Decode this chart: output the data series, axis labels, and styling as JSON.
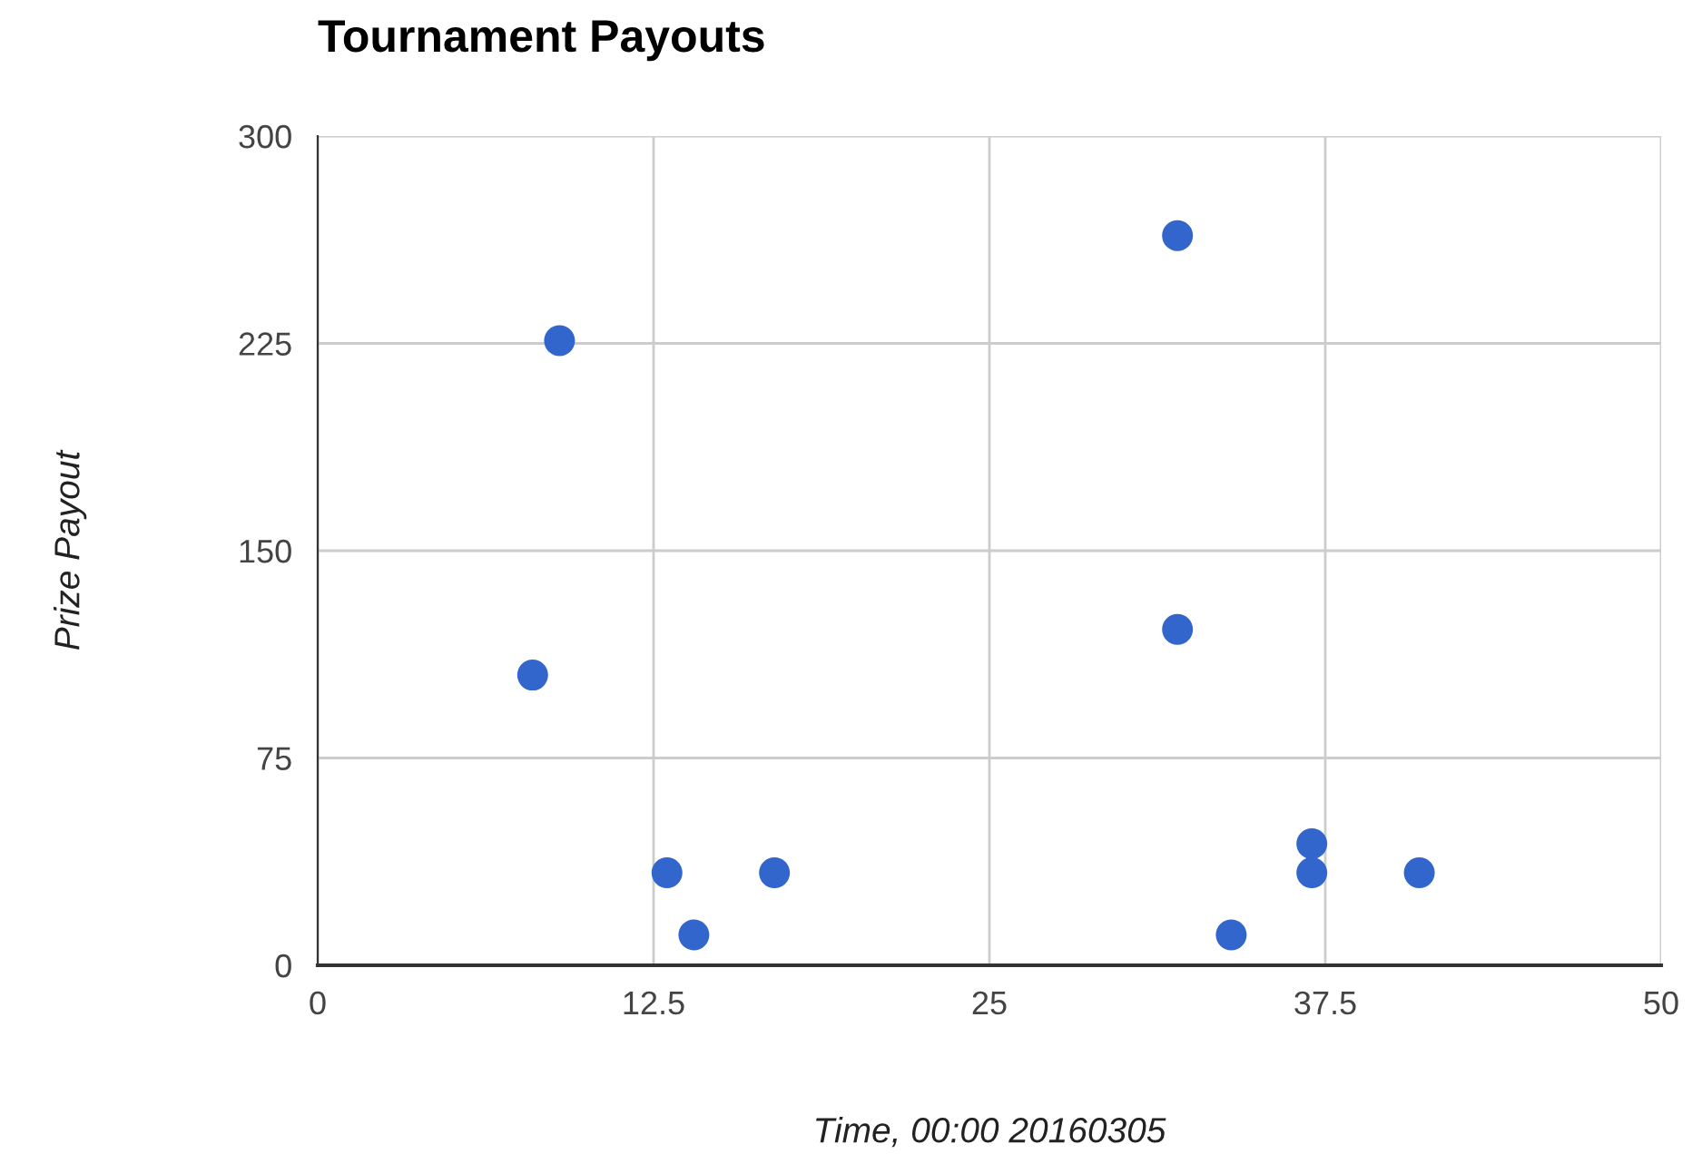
{
  "chart_data": {
    "type": "scatter",
    "title": "Tournament Payouts",
    "xlabel": "Time, 00:00 20160305",
    "ylabel": "Prize Payout",
    "x": [
      8,
      9,
      13,
      14,
      17,
      32,
      32,
      34,
      37,
      37,
      41
    ],
    "series": [
      {
        "color": "#3366cc",
        "values": [
          105,
          226,
          33.5,
          11,
          33.5,
          264,
          121.5,
          11,
          44,
          33.5,
          33.5
        ]
      }
    ],
    "xlim": [
      0,
      50
    ],
    "xticks": [
      0,
      12.5,
      25,
      37.5,
      50
    ],
    "ylim": [
      0,
      300
    ],
    "yticks": [
      0,
      75,
      150,
      225,
      300
    ],
    "grid": true,
    "marker": "circle",
    "legend": false
  }
}
